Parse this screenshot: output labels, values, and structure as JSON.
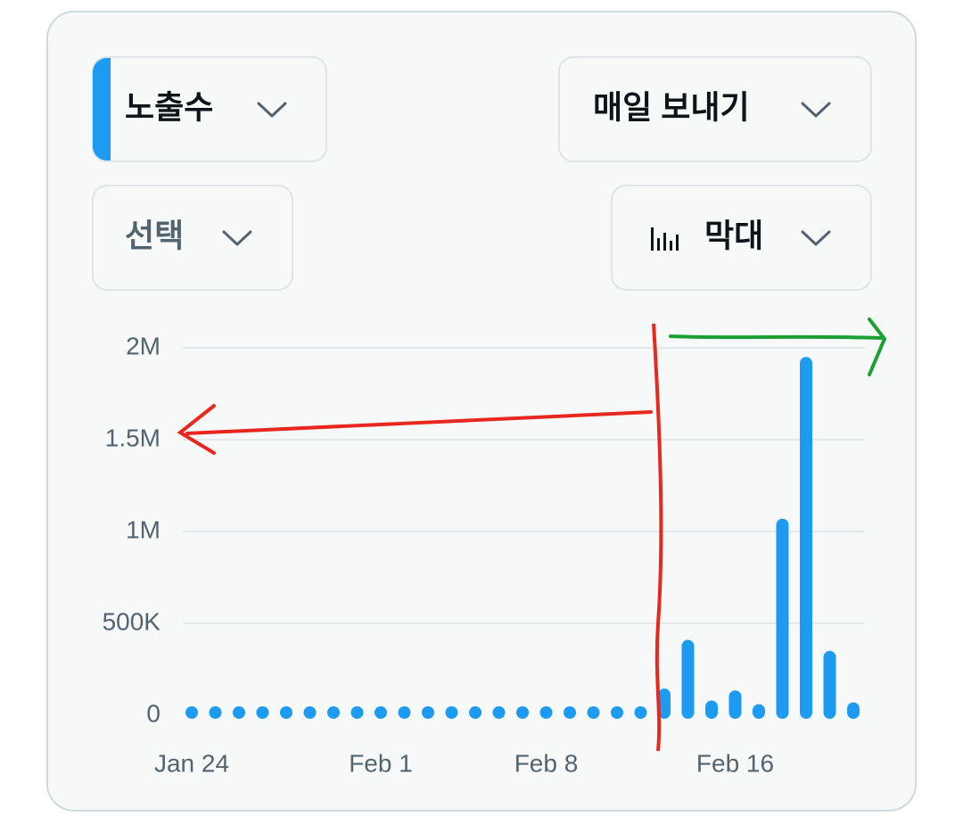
{
  "controls": {
    "metric": "노출수",
    "frequency": "매일 보내기",
    "filter": "선택",
    "chart_style": "막대"
  },
  "chart_data": {
    "type": "bar",
    "categories": [
      "Jan 24",
      null,
      null,
      null,
      null,
      null,
      null,
      null,
      "Feb 1",
      null,
      null,
      null,
      null,
      null,
      null,
      "Feb 8",
      null,
      null,
      null,
      null,
      null,
      null,
      null,
      "Feb 16",
      null,
      null,
      null,
      null,
      null
    ],
    "values": [
      5000,
      5000,
      8000,
      20000,
      15000,
      15000,
      15000,
      15000,
      30000,
      12000,
      12000,
      12000,
      12000,
      10000,
      10000,
      25000,
      12000,
      12000,
      15000,
      15000,
      145000,
      410000,
      80000,
      135000,
      60000,
      1070000,
      1950000,
      350000,
      70000
    ],
    "color": "#1d9bf0",
    "ylim": [
      0,
      2000000
    ],
    "yticks": [
      0,
      {
        "value": 500000,
        "label": "500K"
      },
      {
        "value": 1000000,
        "label": "1M"
      },
      {
        "value": 1500000,
        "label": "1.5M"
      },
      {
        "value": 2000000,
        "label": "2M"
      }
    ],
    "grid": true
  }
}
